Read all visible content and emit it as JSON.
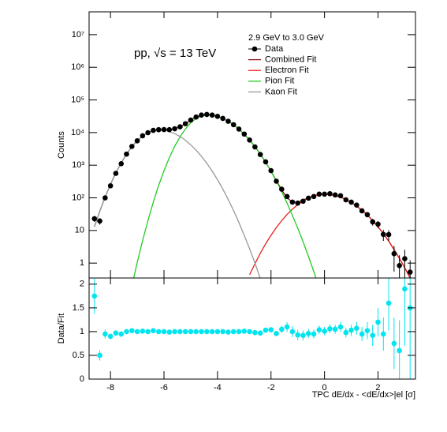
{
  "chart_data": [
    {
      "type": "errorbar",
      "ylabel": "Counts",
      "annotation": "pp, √s = 13 TeV",
      "legend_title": "2.9 GeV to 3.0 GeV",
      "log_y": true,
      "xtick_labels": false,
      "xlim": [
        -8.8,
        3.4
      ],
      "xticks": [
        -8,
        -6,
        -4,
        -2,
        0,
        2
      ],
      "ylim": [
        0.35,
        50000000
      ],
      "yticks": [
        1,
        10,
        {
          "value": 100,
          "label": "10²"
        },
        {
          "value": 1000,
          "label": "10³"
        },
        {
          "value": 10000,
          "label": "10⁴"
        },
        {
          "value": 100000,
          "label": "10⁵"
        },
        {
          "value": 1000000,
          "label": "10⁶"
        },
        {
          "value": 10000000,
          "label": "10⁷"
        }
      ],
      "x": [
        -8.6,
        -8.4,
        -8.2,
        -8.0,
        -7.8,
        -7.6,
        -7.4,
        -7.2,
        -7.0,
        -6.8,
        -6.6,
        -6.4,
        -6.2,
        -6.0,
        -5.8,
        -5.6,
        -5.4,
        -5.2,
        -5.0,
        -4.8,
        -4.6,
        -4.4,
        -4.2,
        -4.0,
        -3.8,
        -3.6,
        -3.4,
        -3.2,
        -3.0,
        -2.8,
        -2.6,
        -2.4,
        -2.2,
        -2.0,
        -1.8,
        -1.6,
        -1.4,
        -1.2,
        -1.0,
        -0.8,
        -0.6,
        -0.4,
        -0.2,
        0,
        0.2,
        0.4,
        0.6,
        0.8,
        1.0,
        1.2,
        1.4,
        1.6,
        1.8,
        2.0,
        2.2,
        2.4,
        2.6,
        2.8,
        3.0,
        3.2
      ],
      "series": [
        {
          "name": "Data",
          "style": "points",
          "color": "#000000",
          "values": [
            23,
            19.5,
            100,
            234,
            563,
            1110,
            2190,
            3770,
            5600,
            7980,
            9920,
            11700,
            12240,
            12380,
            12280,
            13100,
            15000,
            18700,
            24200,
            29900,
            34400,
            35850,
            34360,
            31360,
            27190,
            22170,
            17440,
            12820,
            9000,
            5900,
            3630,
            2130,
            1270,
            683,
            324,
            184,
            110,
            74,
            69,
            79,
            97.5,
            110,
            130,
            130,
            134,
            123,
            116,
            87,
            74,
            60,
            40,
            30.6,
            18.4,
            15.6,
            7.6,
            7.5,
            1.95,
            0.84,
            1.37,
            0.53
          ],
          "errors": [
            4.8,
            4.4,
            10,
            15,
            24,
            33,
            47,
            61,
            75,
            89,
            100,
            108,
            111,
            111,
            111,
            114,
            122,
            137,
            156,
            173,
            185,
            189,
            185,
            177,
            165,
            149,
            132,
            113,
            95,
            77,
            60,
            46,
            36,
            26,
            18,
            13.6,
            10.5,
            8.6,
            8.3,
            8.9,
            9.9,
            10.5,
            11.4,
            11.4,
            11.6,
            11.1,
            10.8,
            9.3,
            8.6,
            7.7,
            6.3,
            5.5,
            4.3,
            3.9,
            2.8,
            2.7,
            1.4,
            0.9,
            1.2,
            0.7
          ]
        },
        {
          "name": "Combined Fit",
          "style": "line",
          "color": "#8b1010",
          "values": [
            13,
            39,
            105,
            260,
            580,
            1170,
            2190,
            3700,
            5600,
            7900,
            9920,
            11470,
            12240,
            12380,
            12400,
            13100,
            15000,
            18700,
            24200,
            29900,
            34400,
            35850,
            34360,
            31360,
            27190,
            22390,
            17440,
            12820,
            8910,
            5900,
            3700,
            2200,
            1234,
            657,
            337,
            175,
            100,
            74,
            74,
            85.5,
            101.6,
            115.5,
            125,
            129,
            126,
            117,
            105,
            89,
            72,
            56,
            42,
            30,
            20,
            13,
            8,
            4.7,
            2.6,
            1.4,
            0.72,
            0.35
          ]
        },
        {
          "name": "Electron Fit",
          "style": "line",
          "color": "#e8201a",
          "values": [
            null,
            null,
            null,
            null,
            null,
            null,
            null,
            null,
            null,
            null,
            null,
            null,
            null,
            null,
            null,
            null,
            null,
            null,
            null,
            null,
            null,
            null,
            null,
            null,
            null,
            null,
            null,
            null,
            null,
            0.44,
            0.95,
            2.0,
            3.9,
            7.1,
            12.3,
            20,
            31,
            45,
            62,
            81,
            100,
            115,
            125,
            129,
            126,
            117,
            105,
            89,
            72,
            56,
            42,
            30,
            20,
            13,
            8,
            4.7,
            2.6,
            1.4,
            0.72,
            0.35
          ]
        },
        {
          "name": "Pion Fit",
          "style": "line",
          "color": "#22cc22",
          "values": [
            null,
            null,
            null,
            null,
            null,
            null,
            null,
            0.2,
            1.05,
            4.9,
            20,
            74,
            240,
            680,
            1700,
            3800,
            7400,
            12900,
            20000,
            27000,
            32500,
            34700,
            33700,
            31000,
            27000,
            22300,
            17400,
            12800,
            8900,
            5900,
            3700,
            2200,
            1230,
            650,
            325,
            155,
            69,
            29,
            11.8,
            4.5,
            1.6,
            0.55,
            0.18,
            null,
            null,
            null,
            null,
            null,
            null,
            null,
            null,
            null,
            null,
            null,
            null,
            null,
            null,
            null,
            null,
            null
          ]
        },
        {
          "name": "Kaon Fit",
          "style": "line",
          "color": "#999999",
          "values": [
            13,
            39,
            105,
            260,
            580,
            1170,
            2190,
            3700,
            5600,
            7900,
            9900,
            11400,
            12000,
            11700,
            10700,
            9300,
            7600,
            5800,
            4200,
            2900,
            1880,
            1150,
            660,
            360,
            185,
            89,
            41,
            17.6,
            7.1,
            2.75,
            1.0,
            0.34,
            null,
            null,
            null,
            null,
            null,
            null,
            null,
            null,
            null,
            null,
            null,
            null,
            null,
            null,
            null,
            null,
            null,
            null,
            null,
            null,
            null,
            null,
            null,
            null,
            null,
            null,
            null,
            null
          ]
        }
      ]
    },
    {
      "type": "errorbar",
      "ylabel": "Data/Fit",
      "xlabel": "TPC dE/dx - <dE/dx>|el [σ]",
      "log_y": false,
      "xtick_labels": true,
      "xlim": [
        -8.8,
        3.4
      ],
      "xticks": [
        -8,
        -6,
        -4,
        -2,
        0,
        2
      ],
      "ylim": [
        0,
        2.13
      ],
      "yticks": [
        0,
        0.5,
        1,
        1.5,
        2
      ],
      "x": [
        -8.6,
        -8.4,
        -8.2,
        -8.0,
        -7.8,
        -7.6,
        -7.4,
        -7.2,
        -7.0,
        -6.8,
        -6.6,
        -6.4,
        -6.2,
        -6.0,
        -5.8,
        -5.6,
        -5.4,
        -5.2,
        -5.0,
        -4.8,
        -4.6,
        -4.4,
        -4.2,
        -4.0,
        -3.8,
        -3.6,
        -3.4,
        -3.2,
        -3.0,
        -2.8,
        -2.6,
        -2.4,
        -2.2,
        -2.0,
        -1.8,
        -1.6,
        -1.4,
        -1.2,
        -1.0,
        -0.8,
        -0.6,
        -0.4,
        -0.2,
        0,
        0.2,
        0.4,
        0.6,
        0.8,
        1.0,
        1.2,
        1.4,
        1.6,
        1.8,
        2.0,
        2.2,
        2.4,
        2.6,
        2.8,
        3.0,
        3.2
      ],
      "series": [
        {
          "style": "points",
          "color": "#00e5ee",
          "values": [
            1.75,
            0.5,
            0.95,
            0.9,
            0.97,
            0.95,
            1.0,
            1.02,
            1.0,
            1.01,
            1.0,
            1.02,
            1.0,
            1.0,
            0.99,
            1.0,
            1.0,
            1.0,
            1.0,
            1.0,
            1.0,
            1.0,
            1.0,
            1.0,
            1.0,
            0.99,
            1.0,
            1.0,
            1.01,
            1.0,
            0.98,
            0.97,
            1.03,
            1.04,
            0.96,
            1.05,
            1.1,
            1.0,
            0.93,
            0.92,
            0.96,
            0.95,
            1.04,
            1.01,
            1.06,
            1.05,
            1.1,
            0.98,
            1.03,
            1.07,
            0.95,
            1.02,
            0.92,
            1.2,
            0.95,
            1.6,
            0.75,
            0.6,
            1.9,
            1.5
          ],
          "errors": [
            0.37,
            0.11,
            0.095,
            0.058,
            0.041,
            0.028,
            0.021,
            0.016,
            0.013,
            0.011,
            0.01,
            0.01,
            0.01,
            0.01,
            0.01,
            0.01,
            0.01,
            0.01,
            0.01,
            0.01,
            0.01,
            0.01,
            0.01,
            0.01,
            0.01,
            0.01,
            0.01,
            0.01,
            0.01,
            0.013,
            0.016,
            0.021,
            0.029,
            0.04,
            0.053,
            0.078,
            0.105,
            0.116,
            0.112,
            0.104,
            0.097,
            0.091,
            0.091,
            0.088,
            0.092,
            0.095,
            0.103,
            0.104,
            0.12,
            0.138,
            0.15,
            0.18,
            0.22,
            0.3,
            0.35,
            0.58,
            0.54,
            0.64,
            1.2,
            1.5
          ]
        }
      ]
    }
  ]
}
